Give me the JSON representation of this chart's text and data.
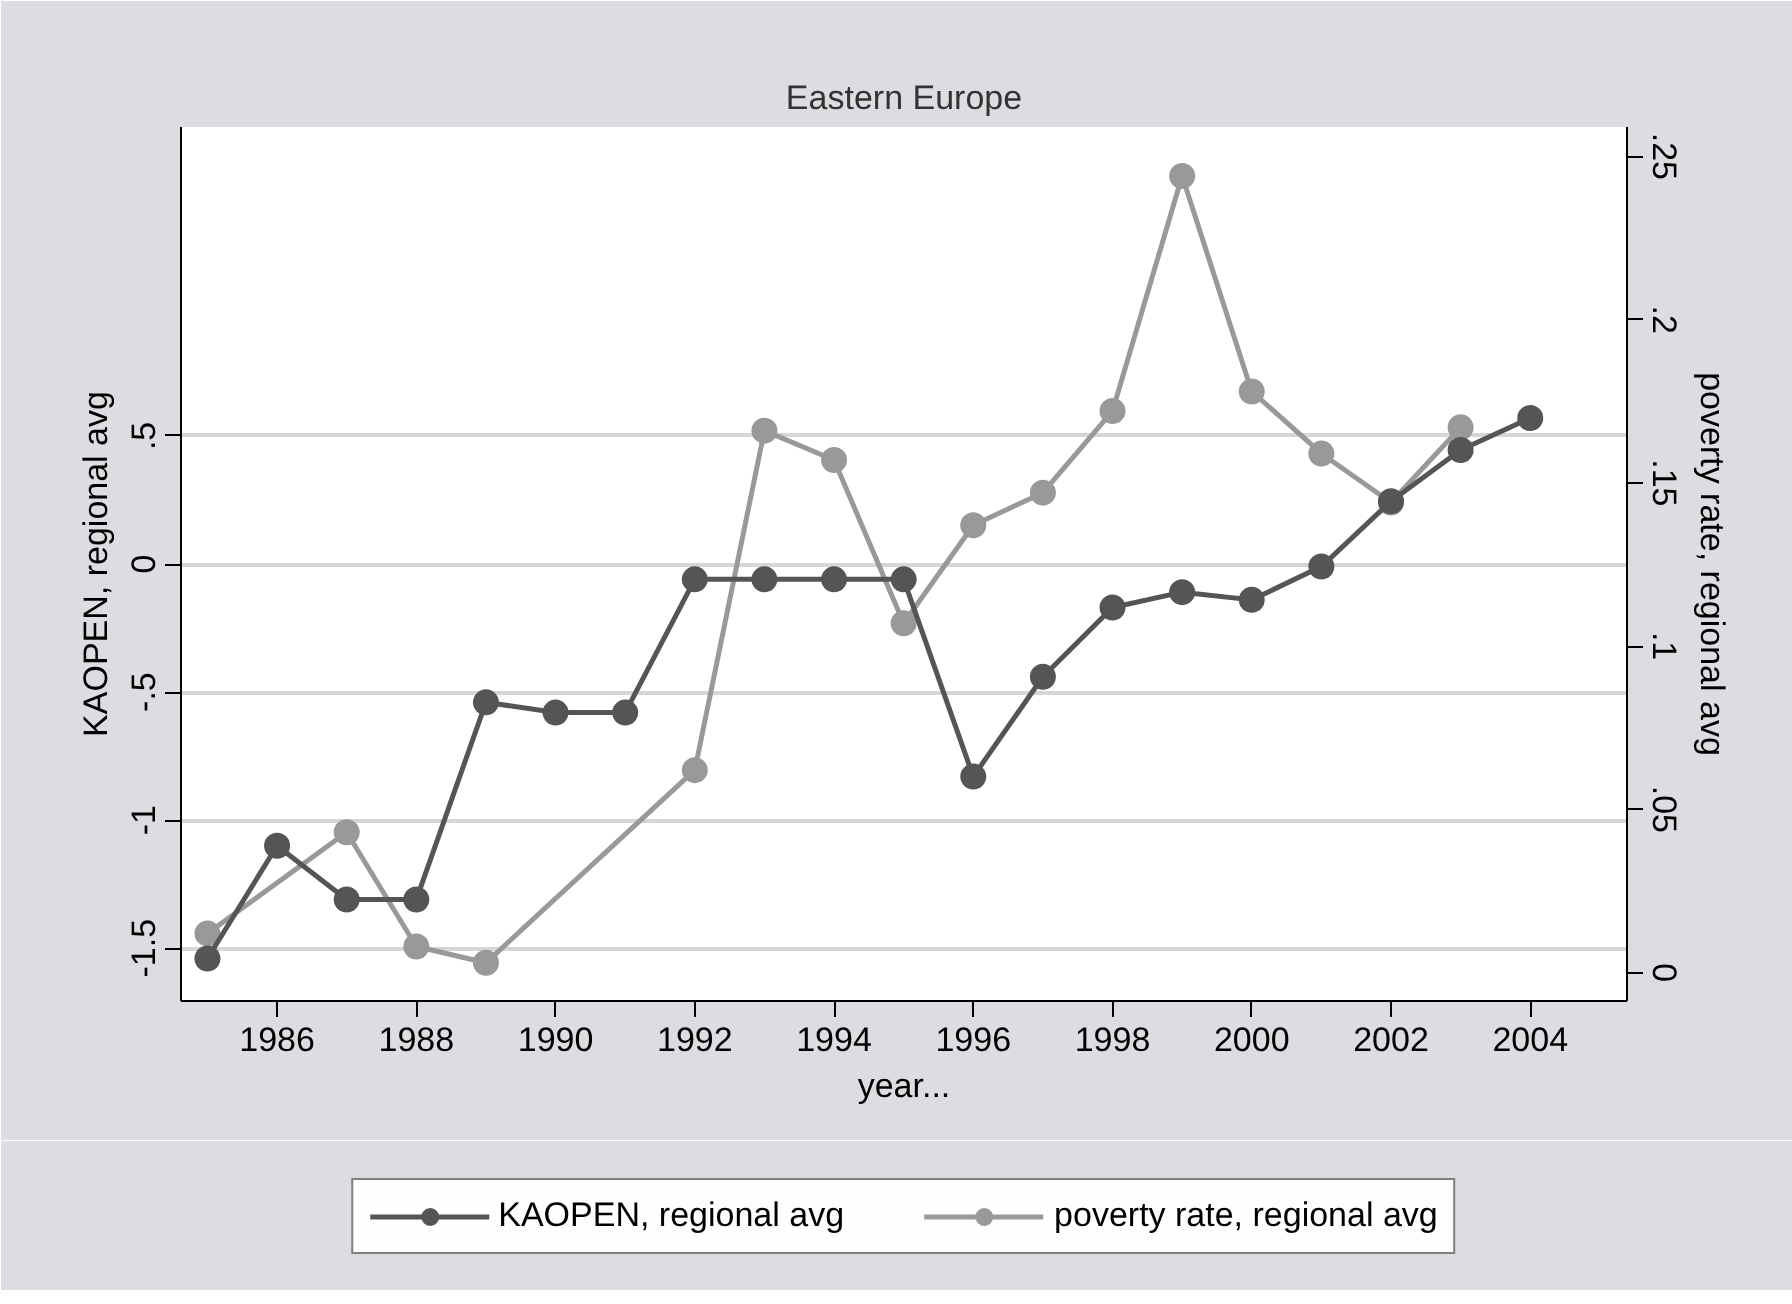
{
  "chart_data": {
    "type": "line",
    "title": "Eastern Europe",
    "xlabel": "year...",
    "ylabel": "KAOPEN, regional avg",
    "y2label": "poverty rate, regional avg",
    "x": [
      1985,
      1986,
      1987,
      1988,
      1989,
      1990,
      1991,
      1992,
      1993,
      1994,
      1995,
      1996,
      1997,
      1998,
      1999,
      2000,
      2001,
      2002,
      2003,
      2004
    ],
    "series": [
      {
        "name": "KAOPEN, regional avg",
        "color": "#555555",
        "values": [
          -1.54,
          -1.1,
          -1.31,
          -1.31,
          -0.54,
          -0.58,
          -0.58,
          -0.06,
          -0.06,
          -0.06,
          -0.06,
          -0.83,
          -0.44,
          -0.17,
          -0.11,
          -0.14,
          -0.01,
          0.245,
          0.445,
          0.57
        ]
      },
      {
        "name": "poverty rate, regional avg",
        "color": "#999999",
        "axis": "y2",
        "x": [
          1985,
          1987,
          1988,
          1989,
          1992,
          1993,
          1994,
          1995,
          1996,
          1997,
          1998,
          1999,
          2000,
          2001,
          2002,
          2003
        ],
        "values": [
          0.012,
          0.043,
          0.008,
          0.003,
          0.062,
          0.166,
          0.157,
          0.107,
          0.137,
          0.147,
          0.172,
          0.244,
          0.178,
          0.159,
          0.144,
          0.167
        ]
      }
    ],
    "xlim": [
      1984.62,
      2005.39
    ],
    "xticks": [
      1986,
      1988,
      1990,
      1992,
      1994,
      1996,
      1998,
      2000,
      2002,
      2004
    ],
    "ylim": [
      -1.706,
      1.706
    ],
    "yticks": [
      {
        "value": -1.5,
        "label": "-1.5"
      },
      {
        "value": -1,
        "label": "-1"
      },
      {
        "value": -0.5,
        "label": "-.5"
      },
      0,
      {
        "value": 0.5,
        "label": ".5"
      }
    ],
    "y2lim": [
      -0.0087,
      0.259
    ],
    "y2ticks": [
      0,
      {
        "value": 0.05,
        "label": ".05"
      },
      {
        "value": 0.1,
        "label": ".1"
      },
      {
        "value": 0.15,
        "label": ".15"
      },
      {
        "value": 0.2,
        "label": ".2"
      },
      {
        "value": 0.25,
        "label": ".25"
      }
    ],
    "grid": "y",
    "legend": "bottom",
    "marker": "circle",
    "line_style": "solid"
  }
}
